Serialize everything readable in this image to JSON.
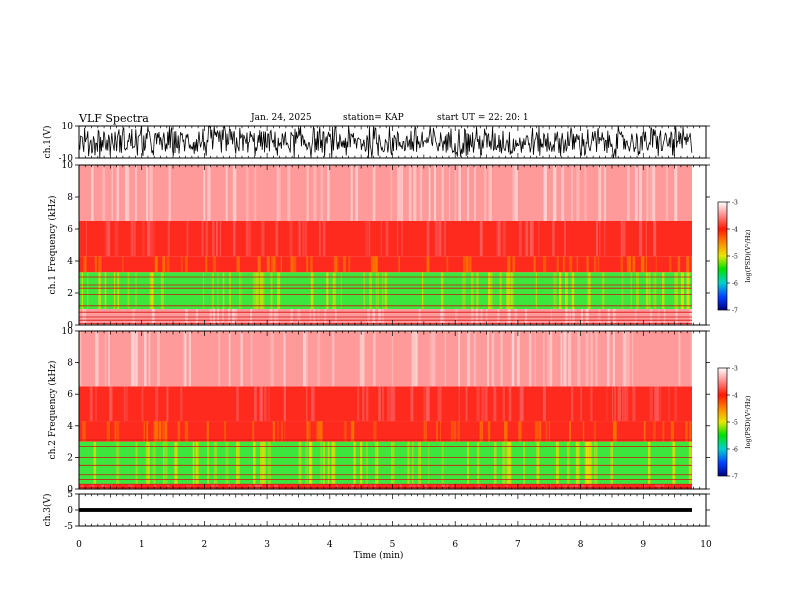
{
  "header": {
    "title": "VLF Spectra",
    "date": "Jan. 24, 2025",
    "station": "station= KAP",
    "start": "start  UT  =   22: 20: 1"
  },
  "colors": {
    "spectrum_red": "#ff2a1e",
    "spectrum_pink": "#ffb3b3",
    "spectrum_yellow": "#f2d200",
    "spectrum_green": "#2fe82f"
  },
  "chart_data": [
    {
      "type": "line",
      "panel": "ch1-waveform",
      "ylabel": "ch.1(V)",
      "ylim": [
        -10,
        10
      ],
      "y_ticks": [
        "10",
        "-10"
      ],
      "xlim": [
        0,
        10
      ],
      "description_values": {
        "amplitude_range_V": [
          -10,
          10
        ]
      }
    },
    {
      "type": "heatmap",
      "panel": "ch1-spectrogram",
      "ylabel": "ch.1  Frequency  (kHz)",
      "ylim": [
        0,
        10
      ],
      "y_ticks": [
        "0",
        "2",
        "4",
        "6",
        "8",
        "10"
      ],
      "xlim": [
        0,
        10
      ],
      "bands": [
        {
          "from_khz": 0.0,
          "to_khz": 1.0,
          "level": -3.2
        },
        {
          "from_khz": 1.0,
          "to_khz": 3.3,
          "level": -4.8
        },
        {
          "from_khz": 3.3,
          "to_khz": 4.3,
          "level": -3.9
        },
        {
          "from_khz": 4.3,
          "to_khz": 6.5,
          "level": -3.4
        },
        {
          "from_khz": 6.5,
          "to_khz": 10.0,
          "level": -3.1
        }
      ],
      "colorbar": {
        "label": "log(PSD)(V²/Hz)",
        "range": [
          -7,
          -3
        ],
        "ticks": [
          "-3",
          "-4",
          "-5",
          "-6",
          "-7"
        ]
      }
    },
    {
      "type": "heatmap",
      "panel": "ch2-spectrogram",
      "ylabel": "ch.2  Frequency  (kHz)",
      "ylim": [
        0,
        10
      ],
      "y_ticks": [
        "0",
        "2",
        "4",
        "6",
        "8",
        "10"
      ],
      "xlim": [
        0,
        10
      ],
      "bands": [
        {
          "from_khz": 0.0,
          "to_khz": 0.3,
          "level": -3.6
        },
        {
          "from_khz": 0.3,
          "to_khz": 3.0,
          "level": -5.0
        },
        {
          "from_khz": 3.0,
          "to_khz": 4.3,
          "level": -3.9
        },
        {
          "from_khz": 4.3,
          "to_khz": 6.5,
          "level": -3.4
        },
        {
          "from_khz": 6.5,
          "to_khz": 10.0,
          "level": -3.1
        }
      ],
      "colorbar": {
        "label": "log(PSD)(V²/Hz)",
        "range": [
          -7,
          -3
        ],
        "ticks": [
          "-3",
          "-4",
          "-5",
          "-6",
          "-7"
        ]
      }
    },
    {
      "type": "line",
      "panel": "ch3-waveform",
      "ylabel": "ch.3(V)",
      "ylim": [
        -5,
        5
      ],
      "y_ticks": [
        "5",
        "0",
        "-5"
      ],
      "xlim": [
        0,
        10
      ],
      "xlabel": "Time  (min)",
      "x_ticks": [
        "0",
        "1",
        "2",
        "3",
        "4",
        "5",
        "6",
        "7",
        "8",
        "9",
        "10"
      ],
      "description_values": {
        "amplitude_range_V": [
          -0.6,
          0.6
        ]
      }
    }
  ]
}
